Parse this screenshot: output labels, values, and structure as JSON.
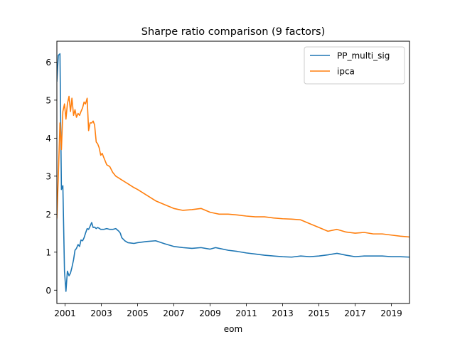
{
  "chart_data": {
    "type": "line",
    "title": "Sharpe ratio comparison (9 factors)",
    "xlabel": "eom",
    "ylabel": "",
    "xlim": [
      2000.55,
      2020.0
    ],
    "ylim": [
      -0.35,
      6.55
    ],
    "xticks": [
      {
        "value": 2001,
        "label": "2001"
      },
      {
        "value": 2003,
        "label": "2003"
      },
      {
        "value": 2005,
        "label": "2005"
      },
      {
        "value": 2007,
        "label": "2007"
      },
      {
        "value": 2009,
        "label": "2009"
      },
      {
        "value": 2011,
        "label": "2011"
      },
      {
        "value": 2013,
        "label": "2013"
      },
      {
        "value": 2015,
        "label": "2015"
      },
      {
        "value": 2017,
        "label": "2017"
      },
      {
        "value": 2019,
        "label": "2019"
      }
    ],
    "yticks": [
      {
        "value": 0,
        "label": "0"
      },
      {
        "value": 1,
        "label": "1"
      },
      {
        "value": 2,
        "label": "2"
      },
      {
        "value": 3,
        "label": "3"
      },
      {
        "value": 4,
        "label": "4"
      },
      {
        "value": 5,
        "label": "5"
      },
      {
        "value": 6,
        "label": "6"
      }
    ],
    "legend_position": "top-right",
    "series": [
      {
        "name": "PP_multi_sig",
        "color": "#1f77b4",
        "x": [
          2000.55,
          2000.63,
          2000.72,
          2000.8,
          2000.88,
          2000.97,
          2001.05,
          2001.13,
          2001.22,
          2001.3,
          2001.38,
          2001.47,
          2001.55,
          2001.63,
          2001.72,
          2001.8,
          2001.88,
          2001.97,
          2002.05,
          2002.13,
          2002.22,
          2002.3,
          2002.38,
          2002.47,
          2002.55,
          2002.63,
          2002.72,
          2002.8,
          2002.88,
          2002.97,
          2003.05,
          2003.13,
          2003.3,
          2003.47,
          2003.63,
          2003.8,
          2003.97,
          2004.05,
          2004.13,
          2004.3,
          2004.47,
          2004.63,
          2004.8,
          2005.0,
          2005.5,
          2006.0,
          2006.5,
          2007.0,
          2007.5,
          2008.0,
          2008.5,
          2009.0,
          2009.3,
          2009.5,
          2010.0,
          2010.5,
          2011.0,
          2011.5,
          2012.0,
          2012.5,
          2013.0,
          2013.5,
          2014.0,
          2014.5,
          2015.0,
          2015.5,
          2016.0,
          2016.5,
          2017.0,
          2017.5,
          2018.0,
          2018.5,
          2019.0,
          2019.5,
          2020.0
        ],
        "values": [
          5.5,
          6.18,
          6.22,
          2.65,
          2.75,
          0.5,
          -0.03,
          0.5,
          0.38,
          0.45,
          0.6,
          0.8,
          1.05,
          1.1,
          1.2,
          1.15,
          1.32,
          1.3,
          1.38,
          1.5,
          1.62,
          1.6,
          1.68,
          1.78,
          1.65,
          1.66,
          1.62,
          1.65,
          1.63,
          1.6,
          1.6,
          1.6,
          1.62,
          1.6,
          1.6,
          1.62,
          1.55,
          1.5,
          1.38,
          1.3,
          1.25,
          1.24,
          1.23,
          1.25,
          1.28,
          1.3,
          1.22,
          1.15,
          1.12,
          1.1,
          1.12,
          1.08,
          1.12,
          1.1,
          1.05,
          1.02,
          0.98,
          0.95,
          0.92,
          0.9,
          0.88,
          0.87,
          0.9,
          0.88,
          0.9,
          0.93,
          0.97,
          0.92,
          0.88,
          0.9,
          0.9,
          0.9,
          0.88,
          0.88,
          0.87
        ]
      },
      {
        "name": "ipca",
        "color": "#ff7f0e",
        "x": [
          2000.55,
          2000.63,
          2000.72,
          2000.8,
          2000.88,
          2000.97,
          2001.05,
          2001.13,
          2001.22,
          2001.3,
          2001.38,
          2001.47,
          2001.55,
          2001.63,
          2001.72,
          2001.8,
          2001.88,
          2001.97,
          2002.05,
          2002.13,
          2002.22,
          2002.3,
          2002.38,
          2002.47,
          2002.55,
          2002.63,
          2002.72,
          2002.8,
          2002.88,
          2002.97,
          2003.05,
          2003.13,
          2003.3,
          2003.47,
          2003.63,
          2003.8,
          2003.97,
          2004.13,
          2004.3,
          2004.47,
          2004.63,
          2004.8,
          2005.0,
          2005.5,
          2006.0,
          2006.5,
          2007.0,
          2007.5,
          2008.0,
          2008.5,
          2009.0,
          2009.3,
          2009.5,
          2010.0,
          2010.5,
          2011.0,
          2011.5,
          2012.0,
          2012.5,
          2013.0,
          2013.5,
          2014.0,
          2014.5,
          2015.0,
          2015.5,
          2016.0,
          2016.5,
          2017.0,
          2017.5,
          2018.0,
          2018.5,
          2019.0,
          2019.5,
          2020.0
        ],
        "values": [
          1.9,
          3.0,
          4.4,
          3.7,
          4.7,
          4.9,
          4.5,
          4.9,
          5.1,
          4.7,
          5.05,
          4.6,
          4.75,
          4.55,
          4.65,
          4.6,
          4.7,
          4.8,
          4.95,
          4.9,
          5.05,
          4.2,
          4.4,
          4.4,
          4.45,
          4.35,
          3.9,
          3.85,
          3.75,
          3.55,
          3.6,
          3.5,
          3.3,
          3.25,
          3.1,
          3.0,
          2.95,
          2.9,
          2.85,
          2.8,
          2.75,
          2.7,
          2.65,
          2.5,
          2.35,
          2.25,
          2.15,
          2.1,
          2.12,
          2.15,
          2.05,
          2.02,
          2.0,
          2.0,
          1.98,
          1.95,
          1.93,
          1.93,
          1.9,
          1.88,
          1.87,
          1.85,
          1.75,
          1.65,
          1.55,
          1.6,
          1.53,
          1.5,
          1.52,
          1.48,
          1.48,
          1.45,
          1.42,
          1.4
        ]
      }
    ]
  }
}
